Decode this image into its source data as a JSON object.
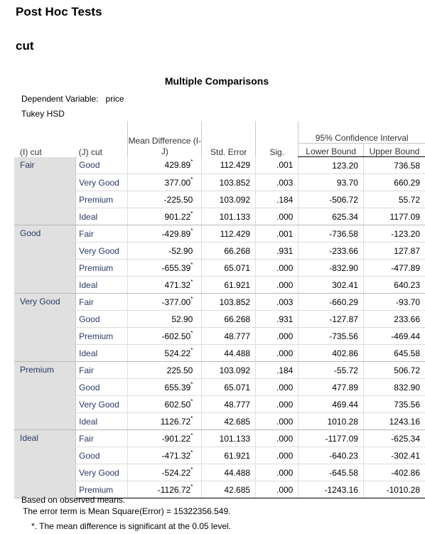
{
  "heading": "Post Hoc Tests",
  "subheading": "cut",
  "table": {
    "title": "Multiple Comparisons",
    "dependent_variable_label": "Dependent Variable:",
    "dependent_variable": "price",
    "method": "Tukey HSD",
    "columns": {
      "i_cut": "(I) cut",
      "j_cut": "(J) cut",
      "mean_difference": "Mean Difference (I-J)",
      "std_error": "Std. Error",
      "sig": "Sig.",
      "ci_header": "95% Confidence Interval",
      "lower_bound": "Lower Bound",
      "upper_bound": "Upper Bound"
    },
    "groups": [
      {
        "i": "Fair",
        "rows": [
          {
            "j": "Good",
            "md": "429.89",
            "star": "*",
            "se": "112.429",
            "sig": ".001",
            "lb": "123.20",
            "ub": "736.58"
          },
          {
            "j": "Very Good",
            "md": "377.00",
            "star": "*",
            "se": "103.852",
            "sig": ".003",
            "lb": "93.70",
            "ub": "660.29"
          },
          {
            "j": "Premium",
            "md": "-225.50",
            "star": "",
            "se": "103.092",
            "sig": ".184",
            "lb": "-506.72",
            "ub": "55.72"
          },
          {
            "j": "Ideal",
            "md": "901.22",
            "star": "*",
            "se": "101.133",
            "sig": ".000",
            "lb": "625.34",
            "ub": "1177.09"
          }
        ]
      },
      {
        "i": "Good",
        "rows": [
          {
            "j": "Fair",
            "md": "-429.89",
            "star": "*",
            "se": "112.429",
            "sig": ".001",
            "lb": "-736.58",
            "ub": "-123.20"
          },
          {
            "j": "Very Good",
            "md": "-52.90",
            "star": "",
            "se": "66.268",
            "sig": ".931",
            "lb": "-233.66",
            "ub": "127.87"
          },
          {
            "j": "Premium",
            "md": "-655.39",
            "star": "*",
            "se": "65.071",
            "sig": ".000",
            "lb": "-832.90",
            "ub": "-477.89"
          },
          {
            "j": "Ideal",
            "md": "471.32",
            "star": "*",
            "se": "61.921",
            "sig": ".000",
            "lb": "302.41",
            "ub": "640.23"
          }
        ]
      },
      {
        "i": "Very Good",
        "rows": [
          {
            "j": "Fair",
            "md": "-377.00",
            "star": "*",
            "se": "103.852",
            "sig": ".003",
            "lb": "-660.29",
            "ub": "-93.70"
          },
          {
            "j": "Good",
            "md": "52.90",
            "star": "",
            "se": "66.268",
            "sig": ".931",
            "lb": "-127.87",
            "ub": "233.66"
          },
          {
            "j": "Premium",
            "md": "-602.50",
            "star": "*",
            "se": "48.777",
            "sig": ".000",
            "lb": "-735.56",
            "ub": "-469.44"
          },
          {
            "j": "Ideal",
            "md": "524.22",
            "star": "*",
            "se": "44.488",
            "sig": ".000",
            "lb": "402.86",
            "ub": "645.58"
          }
        ]
      },
      {
        "i": "Premium",
        "rows": [
          {
            "j": "Fair",
            "md": "225.50",
            "star": "",
            "se": "103.092",
            "sig": ".184",
            "lb": "-55.72",
            "ub": "506.72"
          },
          {
            "j": "Good",
            "md": "655.39",
            "star": "*",
            "se": "65.071",
            "sig": ".000",
            "lb": "477.89",
            "ub": "832.90"
          },
          {
            "j": "Very Good",
            "md": "602.50",
            "star": "*",
            "se": "48.777",
            "sig": ".000",
            "lb": "469.44",
            "ub": "735.56"
          },
          {
            "j": "Ideal",
            "md": "1126.72",
            "star": "*",
            "se": "42.685",
            "sig": ".000",
            "lb": "1010.28",
            "ub": "1243.16"
          }
        ]
      },
      {
        "i": "Ideal",
        "rows": [
          {
            "j": "Fair",
            "md": "-901.22",
            "star": "*",
            "se": "101.133",
            "sig": ".000",
            "lb": "-1177.09",
            "ub": "-625.34"
          },
          {
            "j": "Good",
            "md": "-471.32",
            "star": "*",
            "se": "61.921",
            "sig": ".000",
            "lb": "-640.23",
            "ub": "-302.41"
          },
          {
            "j": "Very Good",
            "md": "-524.22",
            "star": "*",
            "se": "44.488",
            "sig": ".000",
            "lb": "-645.58",
            "ub": "-402.86"
          },
          {
            "j": "Premium",
            "md": "-1126.72",
            "star": "*",
            "se": "42.685",
            "sig": ".000",
            "lb": "-1243.16",
            "ub": "-1010.28"
          }
        ]
      }
    ],
    "footnotes": {
      "basis": "Based on observed means.",
      "error_term": "The error term is Mean Square(Error) = 15322356.549.",
      "significance": "*. The mean difference is significant at the 0.05 level."
    }
  }
}
